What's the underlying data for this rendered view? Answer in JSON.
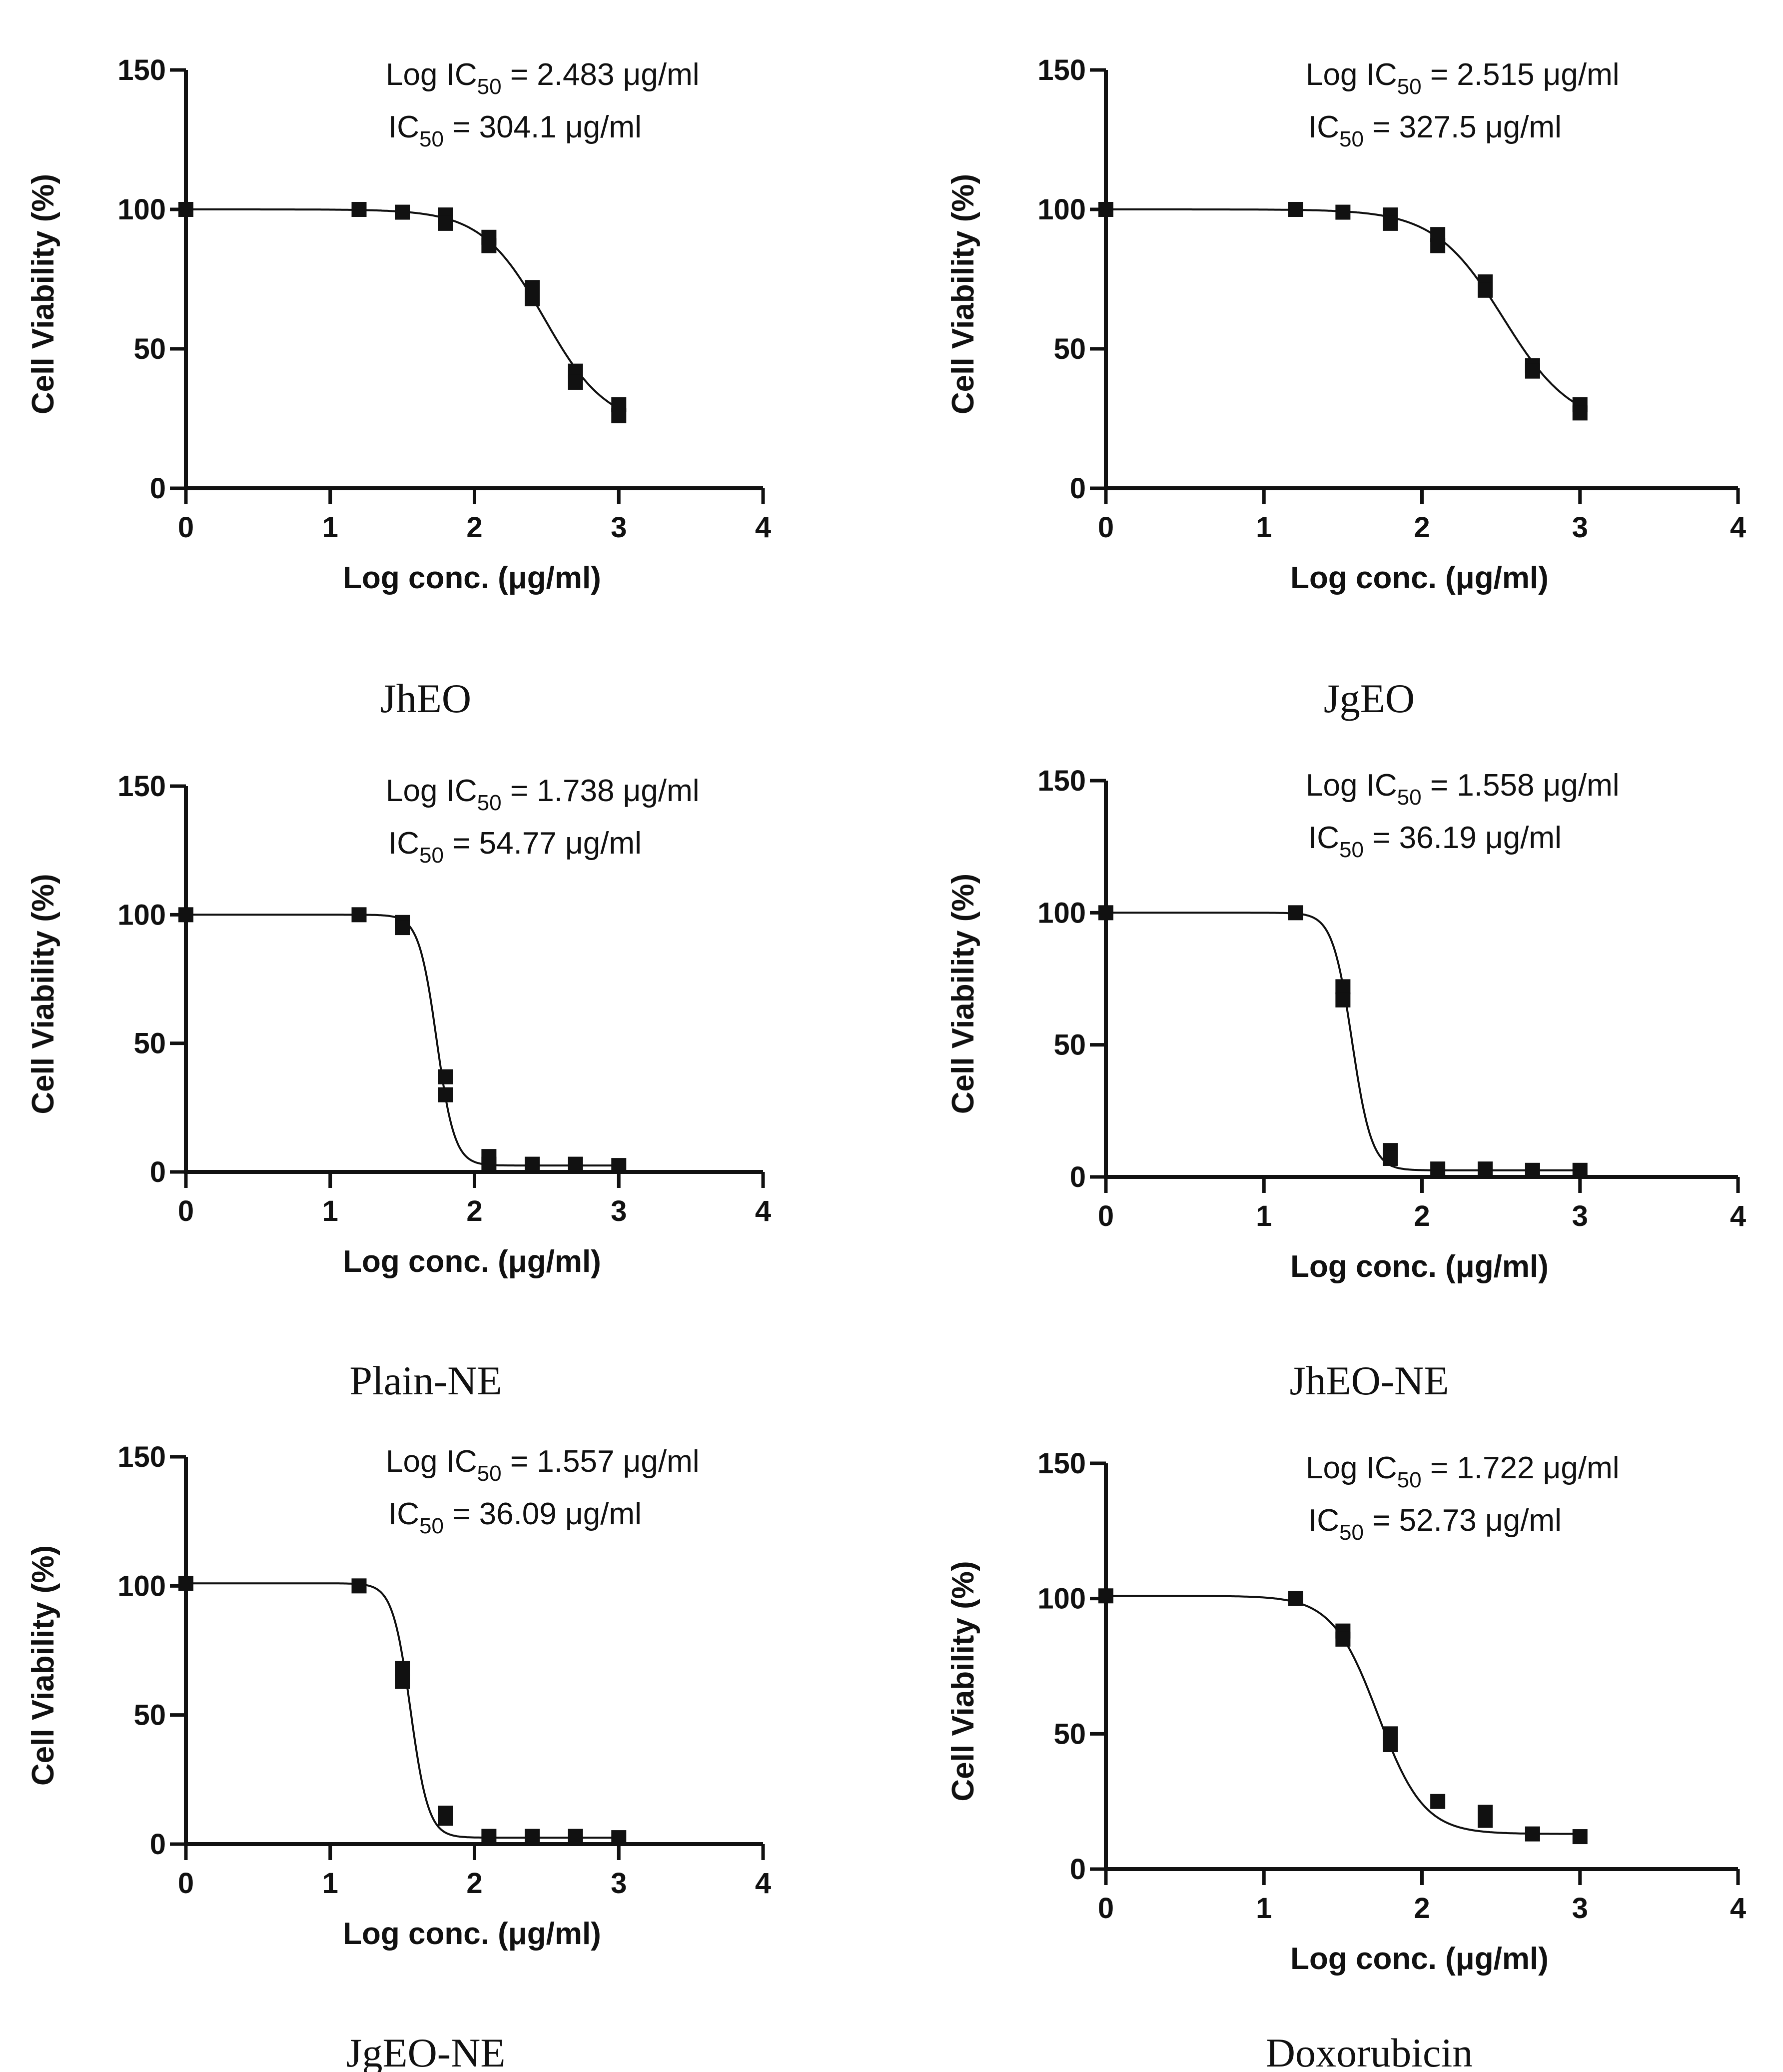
{
  "figure": {
    "common": {
      "xlabel": "Log conc. (μg/ml)",
      "ylabel": "Cell Viability (%)",
      "x_ticks": [
        "0",
        "1",
        "2",
        "3",
        "4"
      ],
      "y_ticks": [
        "0",
        "50",
        "100",
        "150"
      ],
      "log_prefix": "Log IC",
      "ic_prefix": "IC",
      "subscript": "50",
      "equals": " = "
    }
  },
  "chart_data": [
    {
      "type": "scatter",
      "title": "JhEO",
      "xlabel": "Log conc. (μg/ml)",
      "ylabel": "Cell Viability (%)",
      "xlim": [
        0,
        4
      ],
      "ylim": [
        0,
        150
      ],
      "log_ic50_text": "2.483 μg/ml",
      "ic50_text": "304.1 μg/ml",
      "fit": {
        "top": 100,
        "bottom": 22,
        "log_ic50": 2.483,
        "hill": 2.0
      },
      "points": [
        {
          "x": 0,
          "y": 100
        },
        {
          "x": 1.2,
          "y": 100
        },
        {
          "x": 1.5,
          "y": 99
        },
        {
          "x": 1.8,
          "y": 98
        },
        {
          "x": 1.8,
          "y": 95
        },
        {
          "x": 2.1,
          "y": 90
        },
        {
          "x": 2.1,
          "y": 87
        },
        {
          "x": 2.4,
          "y": 72
        },
        {
          "x": 2.4,
          "y": 68
        },
        {
          "x": 2.7,
          "y": 42
        },
        {
          "x": 2.7,
          "y": 38
        },
        {
          "x": 3.0,
          "y": 30
        },
        {
          "x": 3.0,
          "y": 26
        }
      ]
    },
    {
      "type": "scatter",
      "title": "JgEO",
      "xlabel": "Log conc. (μg/ml)",
      "ylabel": "Cell Viability (%)",
      "xlim": [
        0,
        4
      ],
      "ylim": [
        0,
        150
      ],
      "log_ic50_text": "2.515 μg/ml",
      "ic50_text": "327.5 μg/ml",
      "fit": {
        "top": 100,
        "bottom": 22,
        "log_ic50": 2.515,
        "hill": 2.0
      },
      "points": [
        {
          "x": 0,
          "y": 100
        },
        {
          "x": 1.2,
          "y": 100
        },
        {
          "x": 1.5,
          "y": 99
        },
        {
          "x": 1.8,
          "y": 98
        },
        {
          "x": 1.8,
          "y": 95
        },
        {
          "x": 2.1,
          "y": 91
        },
        {
          "x": 2.1,
          "y": 87
        },
        {
          "x": 2.4,
          "y": 74
        },
        {
          "x": 2.4,
          "y": 71
        },
        {
          "x": 2.7,
          "y": 44
        },
        {
          "x": 2.7,
          "y": 42
        },
        {
          "x": 3.0,
          "y": 30
        },
        {
          "x": 3.0,
          "y": 27
        }
      ]
    },
    {
      "type": "scatter",
      "title": "Plain-NE",
      "xlabel": "Log conc. (μg/ml)",
      "ylabel": "Cell Viability (%)",
      "xlim": [
        0,
        4
      ],
      "ylim": [
        0,
        150
      ],
      "log_ic50_text": "1.738 μg/ml",
      "ic50_text": "54.77 μg/ml",
      "fit": {
        "top": 100,
        "bottom": 2.5,
        "log_ic50": 1.738,
        "hill": 7.0
      },
      "points": [
        {
          "x": 0,
          "y": 100
        },
        {
          "x": 1.2,
          "y": 100
        },
        {
          "x": 1.5,
          "y": 97
        },
        {
          "x": 1.5,
          "y": 95
        },
        {
          "x": 1.8,
          "y": 37
        },
        {
          "x": 1.8,
          "y": 30
        },
        {
          "x": 2.1,
          "y": 6
        },
        {
          "x": 2.1,
          "y": 3
        },
        {
          "x": 2.4,
          "y": 3
        },
        {
          "x": 2.7,
          "y": 3
        },
        {
          "x": 3.0,
          "y": 2.5
        }
      ]
    },
    {
      "type": "scatter",
      "title": "JhEO-NE",
      "xlabel": "Log conc. (μg/ml)",
      "ylabel": "Cell Viability (%)",
      "xlim": [
        0,
        4
      ],
      "ylim": [
        0,
        150
      ],
      "log_ic50_text": "1.558 μg/ml",
      "ic50_text": "36.19 μg/ml",
      "fit": {
        "top": 100,
        "bottom": 2.5,
        "log_ic50": 1.558,
        "hill": 7.0
      },
      "points": [
        {
          "x": 0,
          "y": 100
        },
        {
          "x": 1.2,
          "y": 100
        },
        {
          "x": 1.5,
          "y": 72
        },
        {
          "x": 1.5,
          "y": 67
        },
        {
          "x": 1.8,
          "y": 10
        },
        {
          "x": 1.8,
          "y": 7
        },
        {
          "x": 2.1,
          "y": 3
        },
        {
          "x": 2.4,
          "y": 3
        },
        {
          "x": 2.7,
          "y": 2.5
        },
        {
          "x": 3.0,
          "y": 2.5
        }
      ]
    },
    {
      "type": "scatter",
      "title": "JgEO-NE",
      "xlabel": "Log conc. (μg/ml)",
      "ylabel": "Cell Viability (%)",
      "xlim": [
        0,
        4
      ],
      "ylim": [
        0,
        150
      ],
      "log_ic50_text": "1.557 μg/ml",
      "ic50_text": "36.09 μg/ml",
      "fit": {
        "top": 101,
        "bottom": 2.5,
        "log_ic50": 1.557,
        "hill": 7.0
      },
      "points": [
        {
          "x": 0,
          "y": 101
        },
        {
          "x": 1.2,
          "y": 100
        },
        {
          "x": 1.5,
          "y": 68
        },
        {
          "x": 1.5,
          "y": 63
        },
        {
          "x": 1.8,
          "y": 12
        },
        {
          "x": 1.8,
          "y": 10
        },
        {
          "x": 2.1,
          "y": 3
        },
        {
          "x": 2.4,
          "y": 3
        },
        {
          "x": 2.7,
          "y": 3
        },
        {
          "x": 3.0,
          "y": 2.5
        }
      ]
    },
    {
      "type": "scatter",
      "title": "Doxorubicin",
      "xlabel": "Log conc. (μg/ml)",
      "ylabel": "Cell Viability (%)",
      "xlim": [
        0,
        4
      ],
      "ylim": [
        0,
        150
      ],
      "log_ic50_text": "1.722 μg/ml",
      "ic50_text": "52.73 μg/ml",
      "fit": {
        "top": 101,
        "bottom": 13,
        "log_ic50": 1.722,
        "hill": 3.0
      },
      "points": [
        {
          "x": 0,
          "y": 101
        },
        {
          "x": 1.2,
          "y": 100
        },
        {
          "x": 1.5,
          "y": 88
        },
        {
          "x": 1.5,
          "y": 85
        },
        {
          "x": 1.8,
          "y": 50
        },
        {
          "x": 1.8,
          "y": 46
        },
        {
          "x": 2.1,
          "y": 25
        },
        {
          "x": 2.4,
          "y": 21
        },
        {
          "x": 2.4,
          "y": 18
        },
        {
          "x": 2.7,
          "y": 13
        },
        {
          "x": 3.0,
          "y": 12
        }
      ]
    }
  ]
}
